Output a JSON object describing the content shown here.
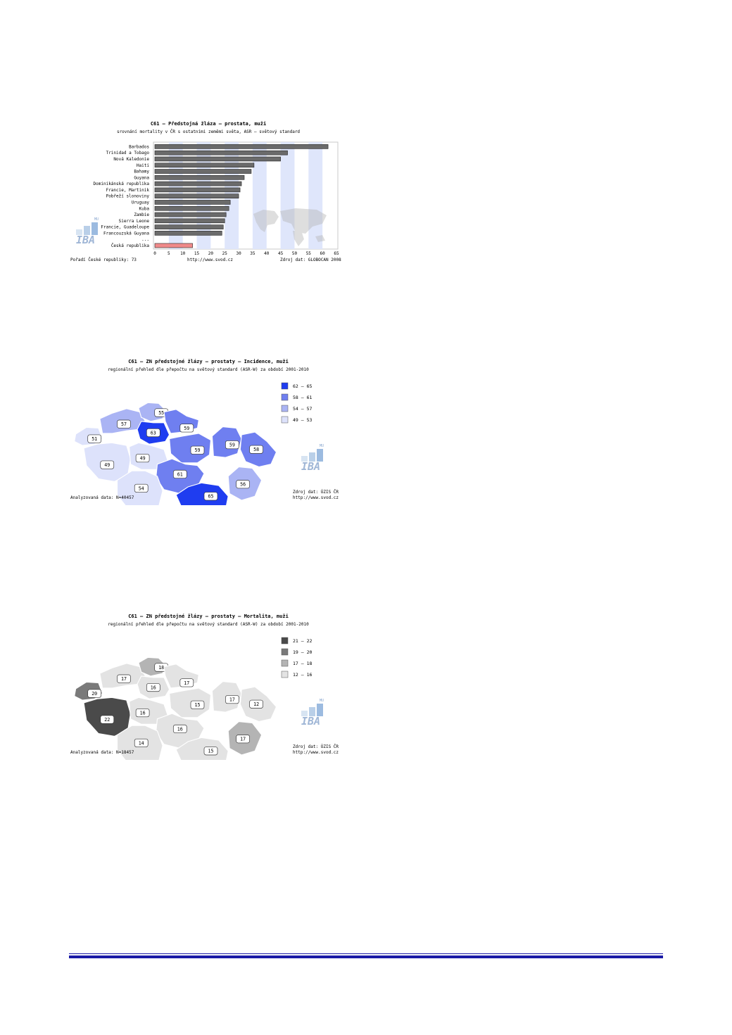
{
  "chart_data": {
    "type": "bar",
    "title": "C61 – Předstojná žláza – prostata, muži",
    "subtitle": "srovnání mortality v ČR s ostatními zeměmi světa, ASR – světový standard",
    "categories": [
      "Barbados",
      "Trinidad a Tobago",
      "Nová Kaledonie",
      "Haiti",
      "Bahamy",
      "Guyana",
      "Dominikánská republika",
      "Francie, Martinik",
      "Pobřeží slonoviny",
      "Uruguay",
      "Kuba",
      "Zambie",
      "Sierra Leone",
      "Francie, Guadeloupe",
      "Francouzská Guyana",
      "...",
      "Česká republika"
    ],
    "values": [
      62,
      47.5,
      45,
      35.5,
      34.5,
      32,
      31,
      30.5,
      30,
      27,
      26.5,
      25.5,
      25,
      24.5,
      24,
      null,
      13.5
    ],
    "highlight_category": "Česká republika",
    "xlim": [
      0,
      65
    ],
    "xticks": [
      0,
      5,
      10,
      15,
      20,
      25,
      30,
      35,
      40,
      45,
      50,
      55,
      60,
      65
    ],
    "grid": true,
    "footer_left": "Pořadí České republiky: 73",
    "footer_center": "http://www.svod.cz",
    "footer_right": "Zdroj dat: GLOBOCAN 2008",
    "logo_small": "MU",
    "logo": "IBA",
    "colors": {
      "bar": "#6b6b6b",
      "highlight": "#f08a8a",
      "band": "#dfe6fb"
    }
  },
  "map_incidence": {
    "title": "C61 – ZN předstojné žlázy – prostaty – Incidence, muži",
    "subtitle": "regionální přehled dle přepočtu na světový standard (ASR-W) za období 2001-2010",
    "legend": [
      {
        "range": "62 – 65",
        "color": "#1f3df0"
      },
      {
        "range": "58 – 61",
        "color": "#6f7ff0"
      },
      {
        "range": "54 – 57",
        "color": "#aab4f4"
      },
      {
        "range": "49 – 53",
        "color": "#dde2fb"
      }
    ],
    "regions": [
      {
        "label": "51",
        "color": "#dde2fb"
      },
      {
        "label": "57",
        "color": "#aab4f4"
      },
      {
        "label": "55",
        "color": "#aab4f4"
      },
      {
        "label": "59",
        "color": "#6f7ff0"
      },
      {
        "label": "63",
        "color": "#1f3df0"
      },
      {
        "label": "49",
        "color": "#dde2fb"
      },
      {
        "label": "49",
        "color": "#dde2fb"
      },
      {
        "label": "59",
        "color": "#6f7ff0"
      },
      {
        "label": "59",
        "color": "#6f7ff0"
      },
      {
        "label": "58",
        "color": "#6f7ff0"
      },
      {
        "label": "61",
        "color": "#6f7ff0"
      },
      {
        "label": "54",
        "color": "#dde2fb"
      },
      {
        "label": "65",
        "color": "#1f3df0"
      },
      {
        "label": "56",
        "color": "#aab4f4"
      }
    ],
    "footer_left": "Analyzovaná data: N=40457",
    "footer_right_1": "Zdroj dat: ÚZIS ČR",
    "footer_right_2": "http://www.svod.cz",
    "logo_small": "MU",
    "logo": "IBA"
  },
  "map_mortality": {
    "title": "C61 – ZN předstojné žlázy – prostaty – Mortalita, muži",
    "subtitle": "regionální přehled dle přepočtu na světový standard (ASR-W) za období 2001-2010",
    "legend": [
      {
        "range": "21 – 22",
        "color": "#4a4a4a"
      },
      {
        "range": "19 – 20",
        "color": "#7a7a7a"
      },
      {
        "range": "17 – 18",
        "color": "#b4b4b4"
      },
      {
        "range": "12 – 16",
        "color": "#e3e3e3"
      }
    ],
    "regions": [
      {
        "label": "20",
        "color": "#7a7a7a"
      },
      {
        "label": "17",
        "color": "#e3e3e3"
      },
      {
        "label": "18",
        "color": "#b4b4b4"
      },
      {
        "label": "17",
        "color": "#e3e3e3"
      },
      {
        "label": "16",
        "color": "#e3e3e3"
      },
      {
        "label": "22",
        "color": "#4a4a4a"
      },
      {
        "label": "16",
        "color": "#e3e3e3"
      },
      {
        "label": "15",
        "color": "#e3e3e3"
      },
      {
        "label": "17",
        "color": "#e3e3e3"
      },
      {
        "label": "12",
        "color": "#e3e3e3"
      },
      {
        "label": "16",
        "color": "#e3e3e3"
      },
      {
        "label": "14",
        "color": "#e3e3e3"
      },
      {
        "label": "15",
        "color": "#e3e3e3"
      },
      {
        "label": "17",
        "color": "#b4b4b4"
      }
    ],
    "footer_left": "Analyzovaná data: N=18457",
    "footer_right_1": "Zdroj dat: ÚZIS ČR",
    "footer_right_2": "http://www.svod.cz",
    "logo_small": "MU",
    "logo": "IBA"
  },
  "page": {
    "rule_color": "#1a1aa6"
  }
}
